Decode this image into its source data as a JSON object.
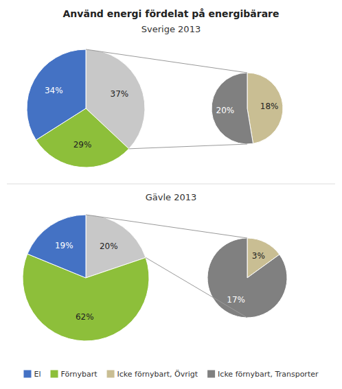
{
  "chart_data": [
    {
      "type": "pie",
      "title": "Använd energi fördelat på energibärare",
      "subtitle": "Sverige 2013",
      "categories": [
        null,
        "Förnybart",
        "El"
      ],
      "values": [
        37,
        29,
        34
      ],
      "value_labels": [
        "37%",
        "29%",
        "34%"
      ],
      "colors": [
        "#C8C8C8",
        "#8DBF3A",
        "#4472C4"
      ],
      "data_labels": true,
      "legend": "bottom"
    },
    {
      "type": "pie",
      "categories": [
        "Icke förnybart, Övrigt",
        "Icke förnybart, Transporter"
      ],
      "values": [
        18,
        20
      ],
      "value_labels": [
        "18%",
        "20%"
      ],
      "colors": [
        "#C9BE93",
        "#808080"
      ],
      "data_labels": true
    },
    {
      "type": "pie",
      "title": "Gävle 2013",
      "values": [
        20,
        62,
        19
      ],
      "value_labels": [
        "20%",
        "62%",
        "19%"
      ],
      "colors": [
        "#C8C8C8",
        "#8DBF3A",
        "#4472C4"
      ],
      "data_labels": true
    },
    {
      "type": "pie",
      "values": [
        3,
        17
      ],
      "value_labels": [
        "3%",
        "17%"
      ],
      "colors": [
        "#C9BE93",
        "#808080"
      ],
      "data_labels": true
    }
  ]
}
